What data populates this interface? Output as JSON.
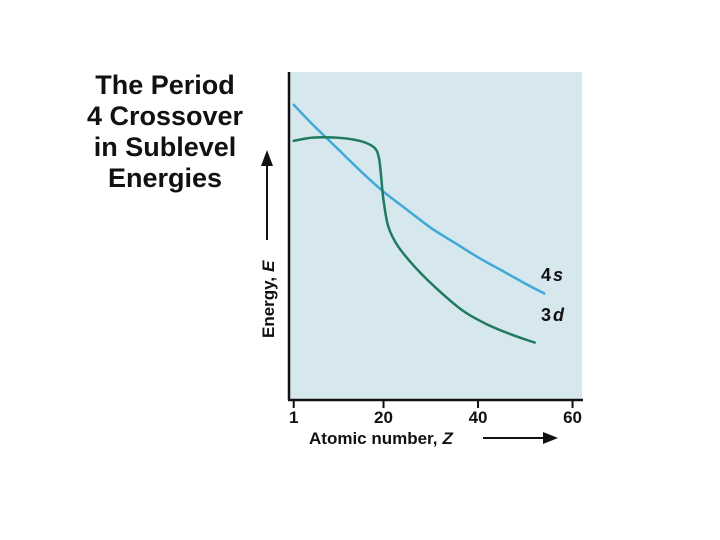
{
  "chart_data": {
    "type": "line",
    "title_lines": [
      "The Period",
      "4 Crossover",
      "in Sublevel",
      "Energies"
    ],
    "xlabel": "Atomic number,",
    "xlabel_var": "Z",
    "ylabel": "Energy,",
    "ylabel_var": "E",
    "xlim": [
      0,
      62
    ],
    "ylim": [
      0,
      10
    ],
    "xticks": [
      {
        "value": 1,
        "label": "1"
      },
      {
        "value": 20,
        "label": "20"
      },
      {
        "value": 40,
        "label": "40"
      },
      {
        "value": 60,
        "label": "60"
      }
    ],
    "grid": false,
    "series": [
      {
        "name": "4s",
        "name_num": "4",
        "name_letter": "s",
        "color": "#3fa9d8",
        "x": [
          1,
          5,
          10,
          15,
          20,
          25,
          30,
          35,
          40,
          45,
          50,
          54
        ],
        "y": [
          9.0,
          8.4,
          7.7,
          7.0,
          6.35,
          5.8,
          5.25,
          4.8,
          4.35,
          3.95,
          3.55,
          3.25
        ]
      },
      {
        "name": "3d",
        "name_num": "3",
        "name_letter": "d",
        "color": "#1f7a5f",
        "x": [
          1,
          5,
          10,
          15,
          18,
          19,
          19.5,
          20,
          21,
          23,
          27,
          32,
          37,
          42,
          47,
          52
        ],
        "y": [
          7.9,
          8.0,
          8.0,
          7.9,
          7.7,
          7.4,
          6.8,
          6.1,
          5.3,
          4.7,
          4.0,
          3.3,
          2.7,
          2.3,
          2.0,
          1.75
        ]
      }
    ],
    "colors": {
      "plot_background": "#d6e7ee",
      "axis": "#111111"
    }
  }
}
